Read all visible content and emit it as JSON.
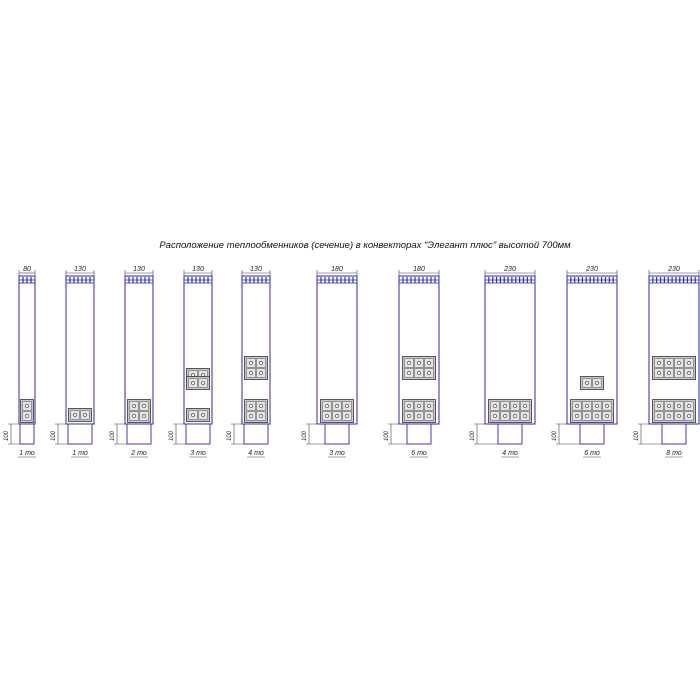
{
  "title": "Расположение теплообменников (сечение) в конвекторах \"Элегант плюс\" высотой 700мм",
  "base_height_label": "100",
  "colors": {
    "outline": "#2a2ab8",
    "module_fill": "#c9c9c9",
    "module_stroke": "#333333",
    "tube_fill": "#ffffff",
    "dim_line": "#444444",
    "grille": "#2a2ab8"
  },
  "convectors": [
    {
      "width_label": "80",
      "caption": "1 то",
      "modules": [
        {
          "level": "bottom",
          "cols": 1,
          "rows": 2
        }
      ]
    },
    {
      "width_label": "130",
      "caption": "1 то",
      "modules": [
        {
          "level": "bottom-wide",
          "cols": 2,
          "rows": 1
        }
      ]
    },
    {
      "width_label": "130",
      "caption": "2 то",
      "modules": [
        {
          "level": "bottom",
          "cols": 2,
          "rows": 2
        }
      ]
    },
    {
      "width_label": "130",
      "caption": "3 то",
      "modules": [
        {
          "level": "upper",
          "cols": 2,
          "rows": 1
        },
        {
          "level": "middle",
          "cols": 2,
          "rows": 1
        },
        {
          "level": "bottom-wide",
          "cols": 2,
          "rows": 1
        }
      ]
    },
    {
      "width_label": "130",
      "caption": "4 то",
      "modules": [
        {
          "level": "upper",
          "cols": 2,
          "rows": 2
        },
        {
          "level": "bottom",
          "cols": 2,
          "rows": 2
        }
      ]
    },
    {
      "width_label": "180",
      "caption": "3 то",
      "modules": [
        {
          "level": "bottom",
          "cols": 3,
          "rows": 2
        }
      ]
    },
    {
      "width_label": "180",
      "caption": "6 то",
      "modules": [
        {
          "level": "upper",
          "cols": 3,
          "rows": 2
        },
        {
          "level": "bottom",
          "cols": 3,
          "rows": 2
        }
      ]
    },
    {
      "width_label": "230",
      "caption": "4 то",
      "modules": [
        {
          "level": "bottom",
          "cols": 4,
          "rows": 2
        }
      ]
    },
    {
      "width_label": "230",
      "caption": "6 то",
      "modules": [
        {
          "level": "middle",
          "cols": 2,
          "rows": 1
        },
        {
          "level": "bottom",
          "cols": 4,
          "rows": 2
        }
      ]
    },
    {
      "width_label": "230",
      "caption": "8 то",
      "modules": [
        {
          "level": "upper",
          "cols": 4,
          "rows": 2
        },
        {
          "level": "bottom",
          "cols": 4,
          "rows": 2
        }
      ]
    }
  ]
}
